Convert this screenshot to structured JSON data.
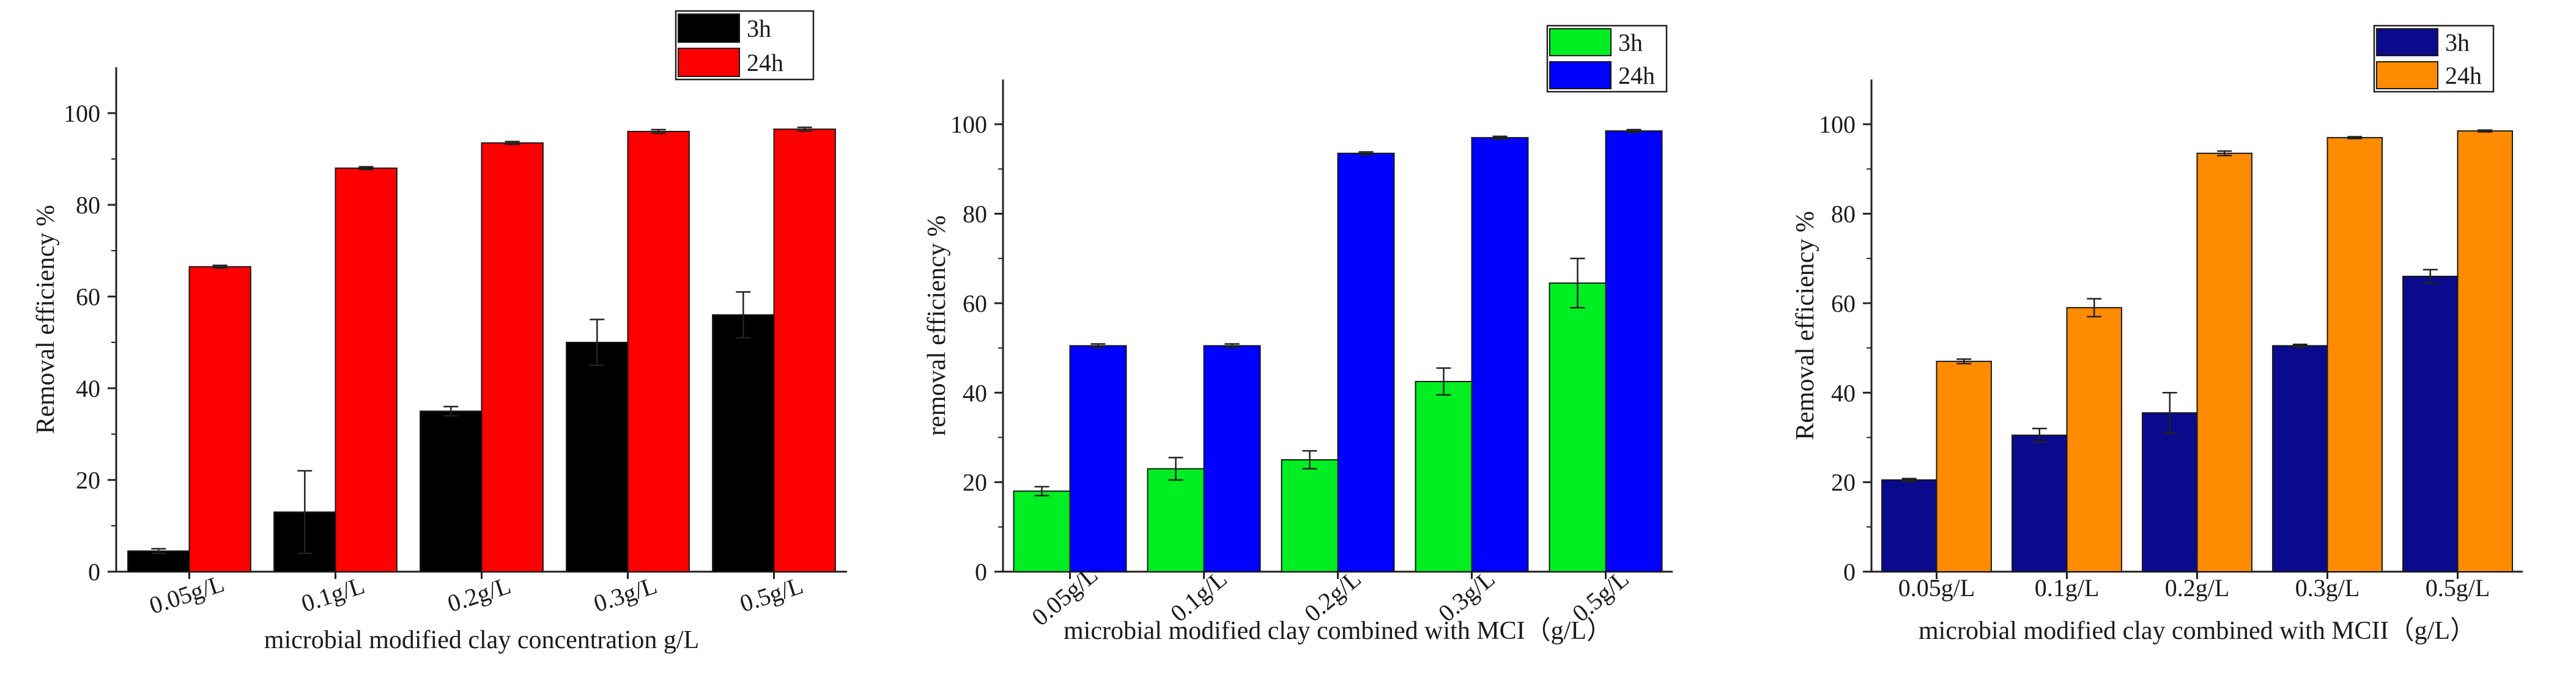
{
  "chart_data": [
    {
      "type": "bar",
      "categories": [
        "0.05g/L",
        "0.1g/L",
        "0.2g/L",
        "0.3g/L",
        "0.5g/L"
      ],
      "series": [
        {
          "name": "3h",
          "color": "#000000",
          "values": [
            4.5,
            13,
            35,
            50,
            56
          ],
          "errors": [
            0.5,
            9,
            1,
            5,
            5
          ]
        },
        {
          "name": "24h",
          "color": "#ff0000",
          "values": [
            66.5,
            88,
            93.5,
            96,
            96.5
          ],
          "errors": [
            0.3,
            0.3,
            0.3,
            0.4,
            0.4
          ]
        }
      ],
      "xlabel": "microbial modified clay concentration g/L",
      "ylabel": "Removal efficiency %",
      "ylim": [
        0,
        110
      ],
      "yticks": [
        "0",
        "20",
        "40",
        "60",
        "80",
        "100"
      ],
      "legend_position": "top-right"
    },
    {
      "type": "bar",
      "categories": [
        "0.05g/L",
        "0.1g/L",
        "0.2g/L",
        "0.3g/L",
        "0.5g/L"
      ],
      "series": [
        {
          "name": "3h",
          "color": "#00ee22",
          "values": [
            18,
            23,
            25,
            42.5,
            64.5
          ],
          "errors": [
            1,
            2.5,
            2,
            3,
            5.5
          ]
        },
        {
          "name": "24h",
          "color": "#0000ff",
          "values": [
            50.5,
            50.5,
            93.5,
            97,
            98.5
          ],
          "errors": [
            0.4,
            0.4,
            0.3,
            0.3,
            0.3
          ]
        }
      ],
      "xlabel": "microbial modified clay combined with MCI（g/L）",
      "ylabel": "removal efficiency %",
      "ylim": [
        0,
        110
      ],
      "yticks": [
        "0",
        "20",
        "40",
        "60",
        "80",
        "100"
      ],
      "legend_position": "top-right"
    },
    {
      "type": "bar",
      "categories": [
        "0.05g/L",
        "0.1g/L",
        "0.2g/L",
        "0.3g/L",
        "0.5g/L"
      ],
      "series": [
        {
          "name": "3h",
          "color": "#0a0a8c",
          "values": [
            20.5,
            30.5,
            35.5,
            50.5,
            66
          ],
          "errors": [
            0.3,
            1.5,
            4.5,
            0.3,
            1.5
          ]
        },
        {
          "name": "24h",
          "color": "#ff8c00",
          "values": [
            47,
            59,
            93.5,
            97,
            98.5
          ],
          "errors": [
            0.5,
            2,
            0.5,
            0.2,
            0.2
          ]
        }
      ],
      "xlabel": "microbial modified clay combined with MCII（g/L）",
      "ylabel": "Removal efficiency %",
      "ylim": [
        0,
        110
      ],
      "yticks": [
        "0",
        "20",
        "40",
        "60",
        "80",
        "100"
      ],
      "legend_position": "top-right"
    }
  ]
}
